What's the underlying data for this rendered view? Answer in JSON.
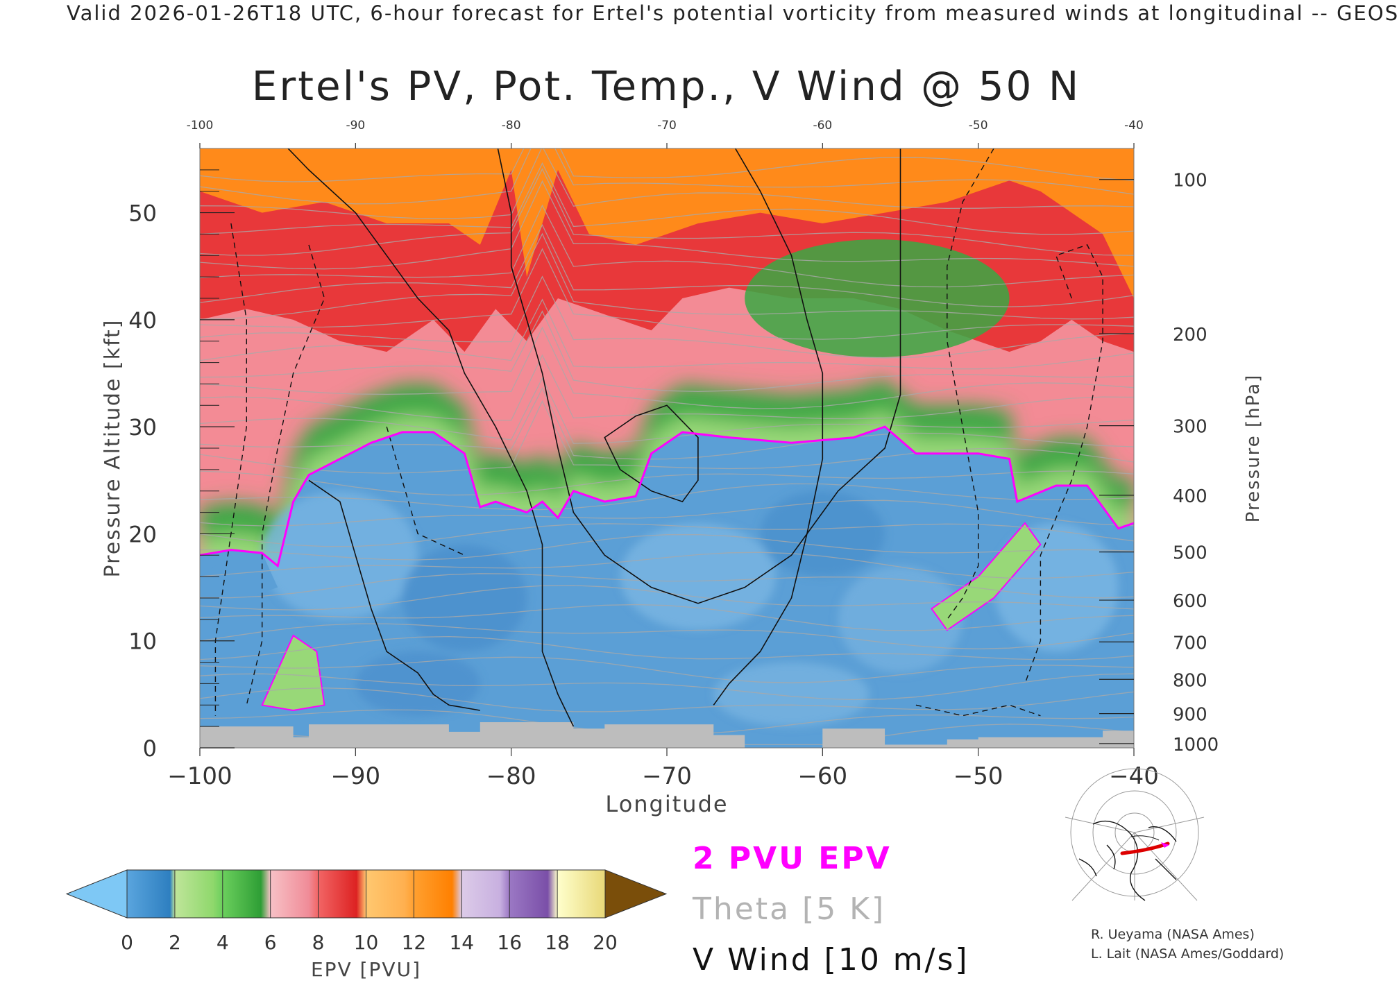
{
  "header": "Valid 2026-01-26T18 UTC, 6-hour forecast for Ertel's potential vorticity from measured winds at longitudinal -- GEOS",
  "title": "Ertel's PV, Pot. Temp., V Wind @ 50 N",
  "chart_data": {
    "type": "heatmap",
    "title": "Ertel's PV, Pot. Temp., V Wind @ 50 N",
    "xlabel": "Longitude",
    "ylabel": "Pressure Altitude [kft]",
    "y2label": "Pressure [hPa]",
    "xlim": [
      -100,
      -40
    ],
    "ylim": [
      0,
      56
    ],
    "x_ticks": [
      -100,
      -90,
      -80,
      -70,
      -60,
      -50,
      -40
    ],
    "x_tick_labels": [
      "−100",
      "−90",
      "−80",
      "−70",
      "−60",
      "−50",
      "−40"
    ],
    "top_x_tick_labels": [
      "-100",
      "-90",
      "-80",
      "-70",
      "-60",
      "-50",
      "-40"
    ],
    "y_ticks": [
      0,
      10,
      20,
      30,
      40,
      50
    ],
    "y_tick_labels": [
      "0",
      "10",
      "20",
      "30",
      "40",
      "50"
    ],
    "pressure_ticks": [
      {
        "label": "100",
        "kft": 53.1
      },
      {
        "label": "200",
        "kft": 38.7
      },
      {
        "label": "300",
        "kft": 30.1
      },
      {
        "label": "400",
        "kft": 23.6
      },
      {
        "label": "500",
        "kft": 18.3
      },
      {
        "label": "600",
        "kft": 13.8
      },
      {
        "label": "700",
        "kft": 9.9
      },
      {
        "label": "800",
        "kft": 6.4
      },
      {
        "label": "900",
        "kft": 3.2
      },
      {
        "label": "1000",
        "kft": 0.4
      }
    ],
    "pv_2pvu_boundary": [
      [
        -100,
        18.0
      ],
      [
        -98,
        18.5
      ],
      [
        -96,
        18.2
      ],
      [
        -95,
        17.0
      ],
      [
        -94,
        23.0
      ],
      [
        -93,
        25.5
      ],
      [
        -91,
        27.0
      ],
      [
        -89,
        28.5
      ],
      [
        -87,
        29.5
      ],
      [
        -85,
        29.5
      ],
      [
        -83,
        27.5
      ],
      [
        -82,
        22.5
      ],
      [
        -81,
        23.0
      ],
      [
        -79,
        22.0
      ],
      [
        -78,
        23.0
      ],
      [
        -77,
        21.5
      ],
      [
        -76,
        24.0
      ],
      [
        -74,
        23.0
      ],
      [
        -72,
        23.5
      ],
      [
        -71,
        27.5
      ],
      [
        -69,
        29.5
      ],
      [
        -66,
        29.0
      ],
      [
        -62,
        28.5
      ],
      [
        -58,
        29.0
      ],
      [
        -56,
        30.0
      ],
      [
        -54,
        27.5
      ],
      [
        -50,
        27.5
      ],
      [
        -48,
        27.0
      ],
      [
        -47.5,
        23.0
      ],
      [
        -45,
        24.5
      ],
      [
        -43,
        24.5
      ],
      [
        -41,
        20.5
      ],
      [
        -40,
        21.0
      ]
    ],
    "pv_colorbar": {
      "label": "EPV [PVU]",
      "ticks": [
        "0",
        "2",
        "4",
        "6",
        "8",
        "10",
        "12",
        "14",
        "16",
        "18",
        "20"
      ],
      "colors": [
        "#2e7fc0",
        "#8fd86c",
        "#2e9e35",
        "#f08c98",
        "#dd2222",
        "#ffb050",
        "#ff8000",
        "#c8b0e0",
        "#7a4fa8",
        "#ffff99"
      ],
      "under_color": "#7ec8f5",
      "over_color": "#7a4e0a"
    },
    "series": [
      {
        "name": "2 PVU EPV",
        "color": "#ff00ff"
      },
      {
        "name": "Theta [5 K]",
        "color": "#b3b3b3"
      },
      {
        "name": "V Wind [10 m/s]",
        "color": "#111111"
      }
    ]
  },
  "credits": [
    "R. Ueyama (NASA Ames)",
    "L. Lait (NASA Ames/Goddard)"
  ]
}
